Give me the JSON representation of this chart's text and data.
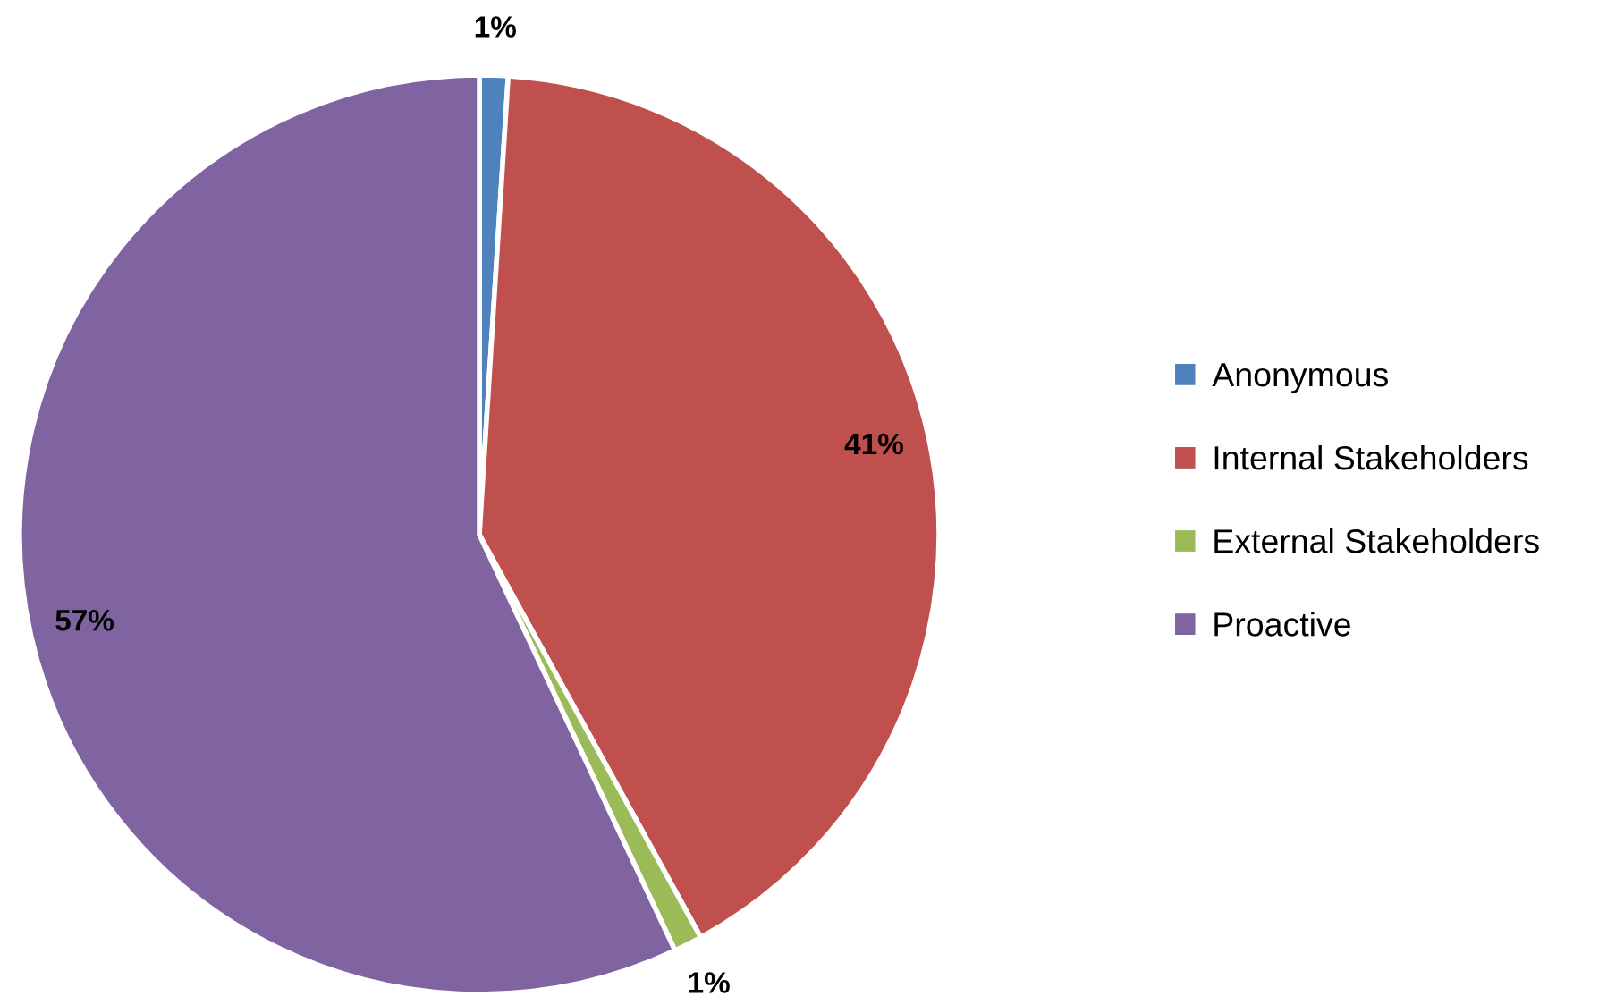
{
  "chart_data": {
    "type": "pie",
    "categories": [
      "Anonymous",
      "Internal Stakeholders",
      "External Stakeholders",
      "Proactive"
    ],
    "values": [
      1,
      41,
      1,
      57
    ],
    "colors": [
      "#4f81bd",
      "#c0504d",
      "#9bbb59",
      "#8064a2"
    ],
    "value_labels": [
      "1%",
      "41%",
      "1%",
      "57%"
    ],
    "legend": "right"
  }
}
